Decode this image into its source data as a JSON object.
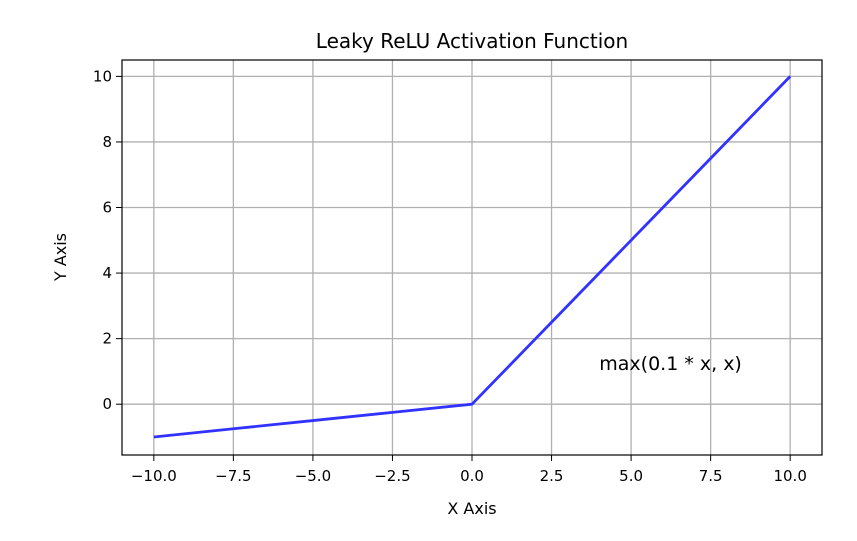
{
  "chart_data": {
    "type": "line",
    "title": "Leaky ReLU Activation Function",
    "xlabel": "X Axis",
    "ylabel": "Y Axis",
    "xlim": [
      -11,
      11
    ],
    "ylim": [
      -1.55,
      10.5
    ],
    "grid": true,
    "x_ticks": [
      -10.0,
      -7.5,
      -5.0,
      -2.5,
      0.0,
      2.5,
      5.0,
      7.5,
      10.0
    ],
    "x_tick_labels": [
      "−10.0",
      "−7.5",
      "−5.0",
      "−2.5",
      "0.0",
      "2.5",
      "5.0",
      "7.5",
      "10.0"
    ],
    "y_ticks": [
      0,
      2,
      4,
      6,
      8,
      10
    ],
    "y_tick_labels": [
      "0",
      "2",
      "4",
      "6",
      "8",
      "10"
    ],
    "series": [
      {
        "color": "#3232ff",
        "x": [
          -10,
          -7.5,
          -5,
          -2.5,
          0,
          2.5,
          5,
          7.5,
          10
        ],
        "y": [
          -1,
          -0.75,
          -0.5,
          -0.25,
          0,
          2.5,
          5,
          7.5,
          10
        ]
      }
    ],
    "annotations": [
      {
        "text": "max(0.1 * x, x)",
        "x": 4,
        "y": 1.05
      }
    ]
  }
}
